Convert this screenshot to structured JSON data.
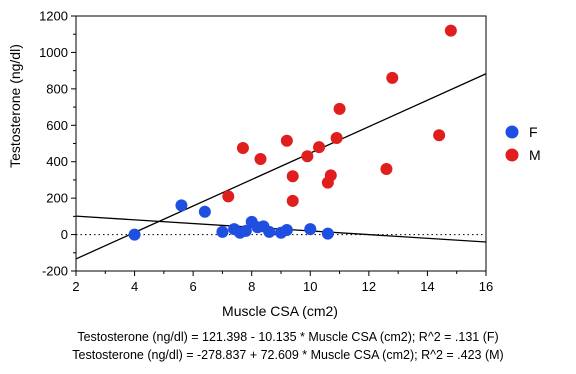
{
  "chart_data": {
    "type": "scatter",
    "xlabel": "Muscle CSA (cm2)",
    "ylabel": "Testosterone (ng/dl)",
    "xlim": [
      2,
      16
    ],
    "ylim": [
      -200,
      1200
    ],
    "x_ticks": [
      2,
      4,
      6,
      8,
      10,
      12,
      14,
      16
    ],
    "y_ticks": [
      -200,
      0,
      200,
      400,
      600,
      800,
      1000,
      1200
    ],
    "reference_line_y": 0,
    "grid": false,
    "legend_position": "right",
    "series": [
      {
        "name": "F",
        "color": "#1e4fe0",
        "points": [
          [
            4.0,
            0
          ],
          [
            5.6,
            160
          ],
          [
            6.4,
            125
          ],
          [
            7.0,
            15
          ],
          [
            7.4,
            30
          ],
          [
            7.6,
            10
          ],
          [
            7.8,
            20
          ],
          [
            8.0,
            70
          ],
          [
            8.2,
            40
          ],
          [
            8.4,
            45
          ],
          [
            8.6,
            15
          ],
          [
            9.0,
            10
          ],
          [
            9.2,
            25
          ],
          [
            10.0,
            30
          ],
          [
            10.6,
            5
          ]
        ],
        "fit": {
          "intercept": 121.398,
          "slope": -10.135,
          "r2": 0.131
        }
      },
      {
        "name": "M",
        "color": "#e01e1e",
        "points": [
          [
            7.2,
            210
          ],
          [
            7.7,
            475
          ],
          [
            8.3,
            415
          ],
          [
            9.2,
            515
          ],
          [
            9.4,
            320
          ],
          [
            9.4,
            185
          ],
          [
            9.9,
            430
          ],
          [
            10.3,
            480
          ],
          [
            10.6,
            285
          ],
          [
            10.7,
            325
          ],
          [
            10.9,
            530
          ],
          [
            11.0,
            690
          ],
          [
            12.6,
            360
          ],
          [
            12.8,
            860
          ],
          [
            14.4,
            545
          ],
          [
            14.8,
            1120
          ]
        ],
        "fit": {
          "intercept": -278.837,
          "slope": 72.609,
          "r2": 0.423
        }
      }
    ],
    "equations": [
      "Testosterone (ng/dl) = 121.398 - 10.135 * Muscle CSA (cm2); R^2 = .131 (F)",
      "Testosterone (ng/dl) = -278.837 + 72.609 * Muscle CSA (cm2); R^2 = .423 (M)"
    ]
  }
}
